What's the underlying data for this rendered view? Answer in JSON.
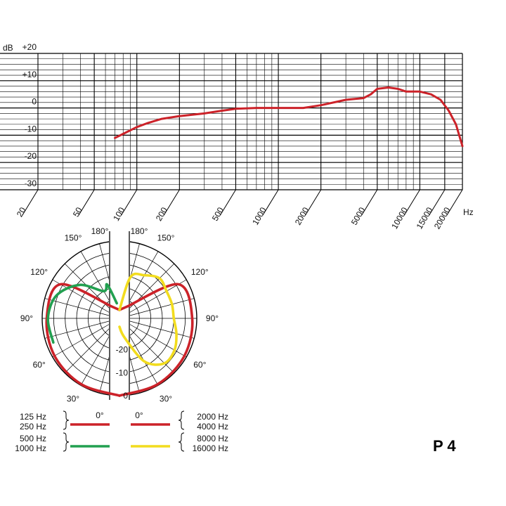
{
  "model_label": "P 4",
  "chart_data": [
    {
      "type": "line",
      "title": "",
      "xlabel": "Hz",
      "ylabel": "dB",
      "xscale": "log",
      "xlim": [
        20,
        20000
      ],
      "ylim": [
        -30,
        20
      ],
      "xticks": [
        20,
        50,
        100,
        200,
        500,
        1000,
        2000,
        5000,
        10000,
        15000,
        20000
      ],
      "xtick_labels": [
        "20",
        "50",
        "100",
        "200",
        "500",
        "1000",
        "2000",
        "5000",
        "10000",
        "15000",
        "20000"
      ],
      "yticks": [
        20,
        10,
        0,
        -10,
        -20,
        -30
      ],
      "ytick_labels": [
        "+20",
        "+10",
        "0",
        "-10",
        "-20",
        "-30"
      ],
      "grid": true,
      "series": [
        {
          "color": "#cc2229",
          "x": [
            70,
            80,
            100,
            120,
            150,
            200,
            300,
            400,
            500,
            700,
            1000,
            1500,
            2000,
            3000,
            4000,
            4500,
            5000,
            6000,
            7000,
            8000,
            9000,
            10000,
            12000,
            14000,
            16000,
            18000,
            20000
          ],
          "y": [
            -11,
            -9.5,
            -7,
            -5.5,
            -4,
            -3,
            -2,
            -1,
            -0.3,
            0,
            0,
            0,
            1,
            3,
            3.6,
            5,
            7,
            7.5,
            7,
            6,
            6,
            6,
            5,
            3,
            -1,
            -6,
            -14
          ]
        }
      ]
    },
    {
      "type": "polar",
      "title": "",
      "angle_unit": "degrees",
      "radial_unit": "dB",
      "rlim": [
        -30,
        0
      ],
      "angle_labels": [
        "0°",
        "30°",
        "60°",
        "90°",
        "120°",
        "150°",
        "180°"
      ],
      "radial_labels": [
        "0",
        "-10",
        "-20"
      ],
      "legend": [
        {
          "labels": [
            "125 Hz",
            "250 Hz"
          ],
          "color": "#cc2229",
          "side": "left"
        },
        {
          "labels": [
            "500 Hz",
            "1000 Hz"
          ],
          "color": "#22a050",
          "side": "left"
        },
        {
          "labels": [
            "2000 Hz",
            "4000 Hz"
          ],
          "color": "#cc2229",
          "side": "right"
        },
        {
          "labels": [
            "8000 Hz",
            "16000 Hz"
          ],
          "color": "#f2dc1e",
          "side": "right"
        }
      ],
      "series": [
        {
          "frequencies": [
            "125 Hz",
            "250 Hz"
          ],
          "color": "#cc2229",
          "side": "left",
          "angles": [
            0,
            30,
            60,
            90,
            120,
            150,
            180
          ],
          "values": [
            0,
            -0.5,
            -1,
            -2,
            -4,
            -28,
            -30
          ]
        },
        {
          "frequencies": [
            "500 Hz",
            "1000 Hz"
          ],
          "color": "#22a050",
          "side": "left",
          "angles": [
            70,
            90,
            110,
            130,
            150,
            160,
            170
          ],
          "values": [
            -3,
            -2.5,
            -4.5,
            -11,
            -20,
            -18,
            -27
          ]
        },
        {
          "frequencies": [
            "2000 Hz",
            "4000 Hz"
          ],
          "color": "#cc2229",
          "side": "right",
          "angles": [
            0,
            30,
            60,
            90,
            120,
            150,
            180
          ],
          "values": [
            0,
            -0.5,
            -1,
            -2,
            -4,
            -28,
            -30
          ]
        },
        {
          "frequencies": [
            "8000 Hz",
            "16000 Hz"
          ],
          "color": "#f2dc1e",
          "side": "right",
          "angles": [
            0,
            15,
            30,
            45,
            60,
            75,
            90,
            105,
            120,
            135,
            150,
            165,
            180
          ],
          "values": [
            -30,
            -25,
            -12,
            -6,
            -6,
            -8,
            -10,
            -10,
            -10,
            -9,
            -12,
            -15,
            -30
          ]
        }
      ]
    }
  ]
}
